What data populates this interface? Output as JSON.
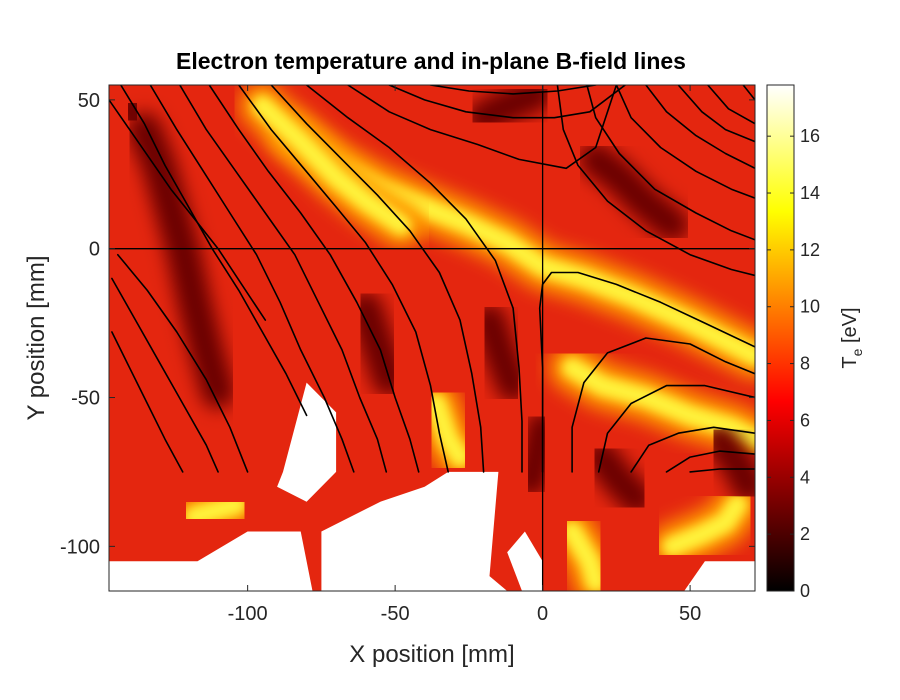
{
  "chart_data": {
    "type": "heatmap",
    "title": "Electron temperature and in-plane B-field lines",
    "xlabel": "X position [mm]",
    "ylabel": "Y position [mm]",
    "xlim": [
      -147,
      72
    ],
    "ylim": [
      -115,
      55
    ],
    "xticks": [
      -100,
      -50,
      0,
      50
    ],
    "xtick_labels": [
      "-100",
      "-50",
      "0",
      "50"
    ],
    "yticks": [
      50,
      0,
      -50,
      -100
    ],
    "ytick_labels": [
      "50",
      "0",
      "-50",
      "-100"
    ],
    "colorbar": {
      "label_main": "T",
      "label_sub": "e",
      "label_unit": " [eV]",
      "range": [
        0,
        17.8
      ],
      "ticks": [
        0,
        2,
        4,
        6,
        8,
        10,
        12,
        14,
        16
      ],
      "tick_labels": [
        "0",
        "2",
        "4",
        "6",
        "8",
        "10",
        "12",
        "14",
        "16"
      ],
      "colormap": "hot"
    },
    "reference_lines": {
      "x": 0,
      "y": 0,
      "color": "#000000"
    },
    "field_line_color": "#000000",
    "field_lines": [
      [
        [
          -147,
          50
        ],
        [
          -140,
          40
        ],
        [
          -133,
          30
        ],
        [
          -126,
          20
        ],
        [
          -118,
          10
        ],
        [
          -110,
          0
        ],
        [
          -102,
          -12
        ],
        [
          -94,
          -24
        ]
      ],
      [
        [
          -143,
          55
        ],
        [
          -135,
          42
        ],
        [
          -128,
          28
        ],
        [
          -120,
          14
        ],
        [
          -112,
          0
        ],
        [
          -103,
          -14
        ],
        [
          -95,
          -28
        ],
        [
          -87,
          -42
        ],
        [
          -80,
          -56
        ]
      ],
      [
        [
          -146,
          -28
        ],
        [
          -140,
          -40
        ],
        [
          -134,
          -52
        ],
        [
          -128,
          -64
        ],
        [
          -122,
          -75
        ]
      ],
      [
        [
          -146,
          -10
        ],
        [
          -138,
          -24
        ],
        [
          -130,
          -38
        ],
        [
          -122,
          -52
        ],
        [
          -114,
          -66
        ],
        [
          -110,
          -75
        ]
      ],
      [
        [
          -144,
          -2
        ],
        [
          -134,
          -14
        ],
        [
          -124,
          -28
        ],
        [
          -114,
          -44
        ],
        [
          -106,
          -60
        ],
        [
          -100,
          -75
        ]
      ],
      [
        [
          -133,
          55
        ],
        [
          -124,
          40
        ],
        [
          -115,
          26
        ],
        [
          -106,
          12
        ],
        [
          -97,
          -2
        ],
        [
          -89,
          -18
        ],
        [
          -82,
          -34
        ],
        [
          -74,
          -50
        ],
        [
          -68,
          -64
        ],
        [
          -64,
          -75
        ]
      ],
      [
        [
          -123,
          55
        ],
        [
          -114,
          40
        ],
        [
          -104,
          26
        ],
        [
          -94,
          12
        ],
        [
          -84,
          -2
        ],
        [
          -76,
          -18
        ],
        [
          -68,
          -34
        ],
        [
          -62,
          -50
        ],
        [
          -56,
          -64
        ],
        [
          -53,
          -75
        ]
      ],
      [
        [
          -113,
          55
        ],
        [
          -103,
          40
        ],
        [
          -93,
          26
        ],
        [
          -82,
          12
        ],
        [
          -72,
          -2
        ],
        [
          -63,
          -18
        ],
        [
          -55,
          -34
        ],
        [
          -50,
          -50
        ],
        [
          -45,
          -64
        ],
        [
          -42,
          -75
        ]
      ],
      [
        [
          -103,
          55
        ],
        [
          -92,
          40
        ],
        [
          -81,
          27
        ],
        [
          -70,
          14
        ],
        [
          -60,
          2
        ],
        [
          -51,
          -12
        ],
        [
          -43,
          -28
        ],
        [
          -38,
          -46
        ],
        [
          -35,
          -62
        ],
        [
          -32,
          -75
        ]
      ],
      [
        [
          -92,
          55
        ],
        [
          -80,
          42
        ],
        [
          -68,
          30
        ],
        [
          -56,
          18
        ],
        [
          -45,
          6
        ],
        [
          -35,
          -8
        ],
        [
          -28,
          -24
        ],
        [
          -24,
          -42
        ],
        [
          -21,
          -60
        ],
        [
          -20,
          -75
        ]
      ],
      [
        [
          -80,
          55
        ],
        [
          -66,
          44
        ],
        [
          -52,
          34
        ],
        [
          -38,
          22
        ],
        [
          -26,
          10
        ],
        [
          -16,
          -4
        ],
        [
          -10,
          -20
        ],
        [
          -8,
          -40
        ],
        [
          -7,
          -58
        ],
        [
          -7,
          -75
        ]
      ],
      [
        [
          -66,
          55
        ],
        [
          -52,
          46
        ],
        [
          -38,
          40
        ],
        [
          -22,
          35
        ],
        [
          -8,
          30
        ],
        [
          8,
          27
        ],
        [
          18,
          34
        ],
        [
          25,
          55
        ]
      ],
      [
        [
          -52,
          55
        ],
        [
          -40,
          50
        ],
        [
          -26,
          46
        ],
        [
          -10,
          44
        ],
        [
          4,
          44
        ],
        [
          16,
          46
        ],
        [
          28,
          55
        ]
      ],
      [
        [
          -38,
          55
        ],
        [
          -25,
          53
        ],
        [
          -10,
          52
        ],
        [
          5,
          53
        ],
        [
          18,
          55
        ]
      ],
      [
        [
          0,
          -75
        ],
        [
          0,
          -60
        ],
        [
          0,
          -40
        ],
        [
          -1,
          -20
        ],
        [
          0,
          -12
        ],
        [
          3,
          -8
        ],
        [
          12,
          -8
        ],
        [
          25,
          -12
        ],
        [
          40,
          -18
        ],
        [
          55,
          -25
        ],
        [
          72,
          -33
        ]
      ],
      [
        [
          10,
          -75
        ],
        [
          10,
          -60
        ],
        [
          14,
          -45
        ],
        [
          22,
          -35
        ],
        [
          35,
          -30
        ],
        [
          50,
          -32
        ],
        [
          62,
          -38
        ],
        [
          72,
          -42
        ]
      ],
      [
        [
          19,
          -75
        ],
        [
          22,
          -62
        ],
        [
          30,
          -52
        ],
        [
          42,
          -46
        ],
        [
          55,
          -46
        ],
        [
          72,
          -50
        ]
      ],
      [
        [
          30,
          -75
        ],
        [
          36,
          -66
        ],
        [
          46,
          -62
        ],
        [
          58,
          -60
        ],
        [
          72,
          -62
        ]
      ],
      [
        [
          42,
          -75
        ],
        [
          50,
          -70
        ],
        [
          60,
          -68
        ],
        [
          72,
          -69
        ]
      ],
      [
        [
          50,
          -75
        ],
        [
          60,
          -74
        ],
        [
          72,
          -74
        ]
      ],
      [
        [
          5,
          55
        ],
        [
          7,
          40
        ],
        [
          12,
          28
        ],
        [
          22,
          16
        ],
        [
          35,
          6
        ],
        [
          50,
          -2
        ],
        [
          64,
          -7
        ],
        [
          72,
          -9
        ]
      ],
      [
        [
          15,
          55
        ],
        [
          18,
          44
        ],
        [
          26,
          32
        ],
        [
          38,
          20
        ],
        [
          52,
          12
        ],
        [
          64,
          6
        ],
        [
          72,
          3
        ]
      ],
      [
        [
          25,
          55
        ],
        [
          30,
          44
        ],
        [
          40,
          34
        ],
        [
          52,
          26
        ],
        [
          64,
          20
        ],
        [
          72,
          17
        ]
      ],
      [
        [
          35,
          55
        ],
        [
          42,
          46
        ],
        [
          52,
          38
        ],
        [
          62,
          32
        ],
        [
          72,
          27
        ]
      ],
      [
        [
          46,
          55
        ],
        [
          54,
          46
        ],
        [
          62,
          40
        ],
        [
          72,
          36
        ]
      ],
      [
        [
          56,
          55
        ],
        [
          63,
          47
        ],
        [
          72,
          42
        ]
      ],
      [
        [
          68,
          55
        ],
        [
          72,
          50
        ]
      ]
    ],
    "hot_features": [
      [
        [
          -85,
          38
        ],
        [
          -70,
          28
        ],
        [
          -55,
          20
        ],
        [
          -40,
          14
        ],
        [
          -25,
          8
        ],
        [
          -12,
          2
        ],
        [
          0,
          -6
        ],
        [
          14,
          -10
        ],
        [
          30,
          -16
        ],
        [
          48,
          -24
        ],
        [
          64,
          -32
        ],
        [
          72,
          -36
        ]
      ],
      [
        [
          -95,
          48
        ],
        [
          -82,
          36
        ],
        [
          -70,
          24
        ],
        [
          -60,
          16
        ],
        [
          -48,
          8
        ]
      ],
      [
        [
          10,
          -40
        ],
        [
          20,
          -46
        ],
        [
          35,
          -50
        ],
        [
          50,
          -56
        ],
        [
          64,
          -60
        ],
        [
          72,
          -64
        ]
      ],
      [
        [
          -36,
          -52
        ],
        [
          -32,
          -64
        ],
        [
          -28,
          -70
        ]
      ],
      [
        [
          -118,
          -90
        ],
        [
          -104,
          -86
        ]
      ],
      [
        [
          44,
          -100
        ],
        [
          54,
          -96
        ],
        [
          62,
          -92
        ],
        [
          66,
          -86
        ]
      ],
      [
        [
          10,
          -95
        ],
        [
          16,
          -105
        ],
        [
          18,
          -112
        ]
      ]
    ],
    "cool_features": [
      [
        [
          -135,
          40
        ],
        [
          -130,
          28
        ],
        [
          -126,
          14
        ],
        [
          -122,
          0
        ],
        [
          -118,
          -18
        ],
        [
          -114,
          -34
        ],
        [
          -110,
          -48
        ]
      ],
      [
        [
          -140,
          48
        ],
        [
          -138,
          44
        ]
      ],
      [
        [
          -60,
          -20
        ],
        [
          -56,
          -32
        ],
        [
          -52,
          -44
        ]
      ],
      [
        [
          -18,
          -24
        ],
        [
          -14,
          -36
        ],
        [
          -10,
          -46
        ]
      ],
      [
        [
          18,
          30
        ],
        [
          26,
          24
        ],
        [
          34,
          16
        ],
        [
          44,
          8
        ]
      ],
      [
        [
          -20,
          44
        ],
        [
          -12,
          48
        ],
        [
          -2,
          52
        ]
      ],
      [
        [
          20,
          -70
        ],
        [
          26,
          -78
        ],
        [
          32,
          -84
        ]
      ],
      [
        [
          60,
          -64
        ],
        [
          66,
          -72
        ],
        [
          70,
          -80
        ]
      ],
      [
        [
          0,
          -60
        ],
        [
          -2,
          -70
        ],
        [
          -4,
          -78
        ]
      ]
    ],
    "no_data_regions": [
      [
        [
          -88,
          -75
        ],
        [
          -80,
          -45
        ],
        [
          -70,
          -55
        ],
        [
          -70,
          -75
        ],
        [
          -80,
          -85
        ],
        [
          -90,
          -80
        ]
      ],
      [
        [
          -147,
          -105
        ],
        [
          -117,
          -105
        ],
        [
          -100,
          -95
        ],
        [
          -82,
          -95
        ],
        [
          -78,
          -115
        ],
        [
          -147,
          -115
        ]
      ],
      [
        [
          -75,
          -115
        ],
        [
          -75,
          -95
        ],
        [
          -55,
          -85
        ],
        [
          -40,
          -80
        ],
        [
          -32,
          -75
        ],
        [
          -15,
          -75
        ],
        [
          -18,
          -110
        ],
        [
          -12,
          -115
        ]
      ],
      [
        [
          -7,
          -115
        ],
        [
          -12,
          -102
        ],
        [
          -6,
          -95
        ],
        [
          0,
          -105
        ],
        [
          0,
          -115
        ]
      ],
      [
        [
          48,
          -115
        ],
        [
          55,
          -105
        ],
        [
          72,
          -105
        ],
        [
          72,
          -115
        ]
      ]
    ]
  }
}
